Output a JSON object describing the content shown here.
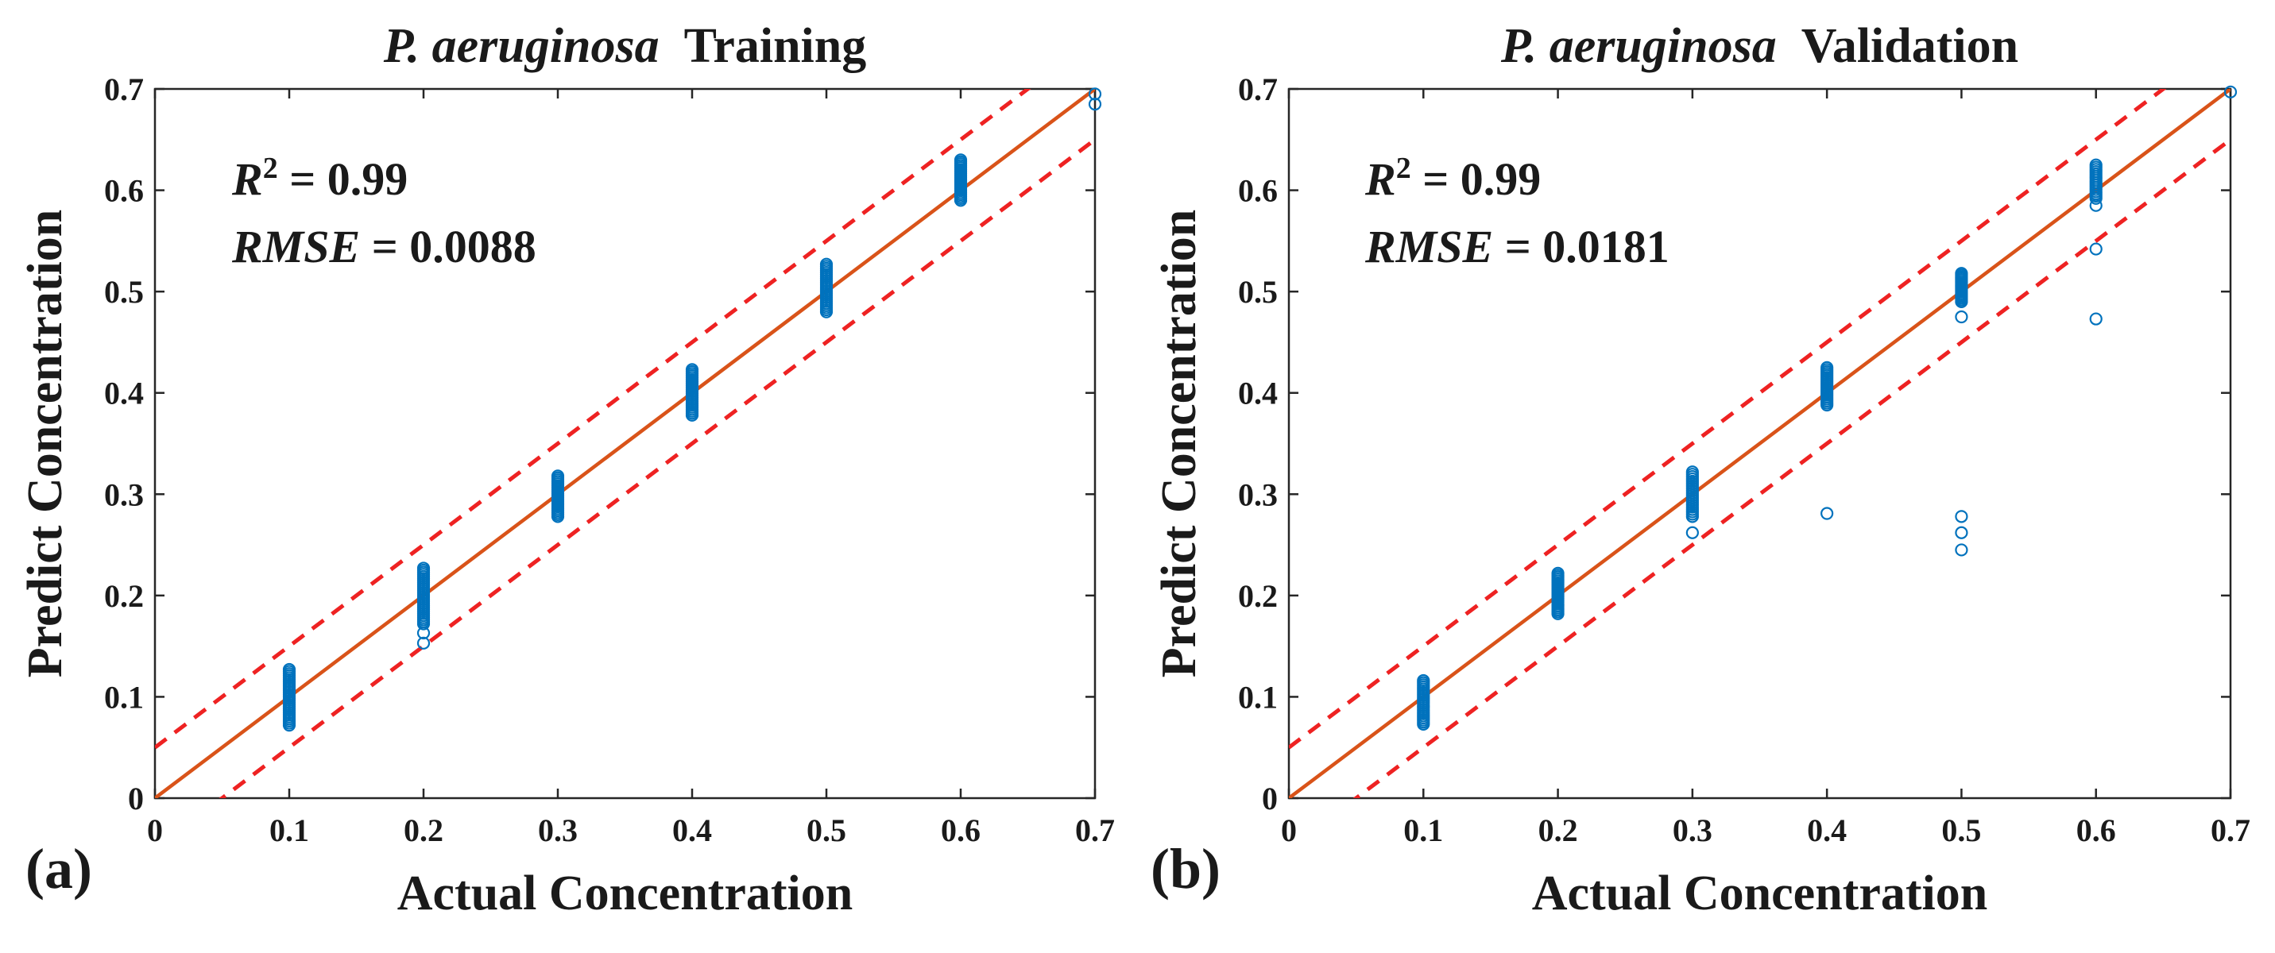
{
  "chart_data": [
    {
      "type": "scatter",
      "panel_label": "(a)",
      "title_italic": "P. aeruginosa",
      "title_rest": "Training",
      "xlabel": "Actual Concentration",
      "ylabel": "Predict Concentration",
      "xlim": [
        0,
        0.7
      ],
      "ylim": [
        0,
        0.7
      ],
      "xticks": [
        "0",
        "0.1",
        "0.2",
        "0.3",
        "0.4",
        "0.5",
        "0.6",
        "0.7"
      ],
      "yticks": [
        "0",
        "0.1",
        "0.2",
        "0.3",
        "0.4",
        "0.5",
        "0.6",
        "0.7"
      ],
      "r2_label": "R",
      "r2_sup": "2",
      "r2_value": " = 0.99",
      "rmse_label": "RMSE",
      "rmse_value": " = 0.0088",
      "fit_line": {
        "x": [
          0,
          0.7
        ],
        "y": [
          0,
          0.7
        ],
        "color": "#d95319"
      },
      "bounds": [
        {
          "x": [
            0,
            0.7
          ],
          "y": [
            0.05,
            0.75
          ],
          "color": "#ee2222"
        },
        {
          "x": [
            0,
            0.7
          ],
          "y": [
            -0.05,
            0.65
          ],
          "color": "#ee2222"
        }
      ],
      "point_color": "#0072bd",
      "groups": [
        {
          "x": 0.1,
          "min": 0.072,
          "max": 0.127,
          "n": 28
        },
        {
          "x": 0.2,
          "min": 0.172,
          "max": 0.227,
          "n": 28
        },
        {
          "x": 0.3,
          "min": 0.278,
          "max": 0.318,
          "n": 22
        },
        {
          "x": 0.4,
          "min": 0.378,
          "max": 0.423,
          "n": 24
        },
        {
          "x": 0.5,
          "min": 0.48,
          "max": 0.527,
          "n": 24
        },
        {
          "x": 0.6,
          "min": 0.59,
          "max": 0.63,
          "n": 22
        }
      ],
      "points": [
        [
          0.2,
          0.163
        ],
        [
          0.2,
          0.153
        ],
        [
          0.7,
          0.695
        ],
        [
          0.7,
          0.685
        ]
      ]
    },
    {
      "type": "scatter",
      "panel_label": "(b)",
      "title_italic": "P. aeruginosa",
      "title_rest": "Validation",
      "xlabel": "Actual Concentration",
      "ylabel": "Predict Concentration",
      "xlim": [
        0,
        0.7
      ],
      "ylim": [
        0,
        0.7
      ],
      "xticks": [
        "0",
        "0.1",
        "0.2",
        "0.3",
        "0.4",
        "0.5",
        "0.6",
        "0.7"
      ],
      "yticks": [
        "0",
        "0.1",
        "0.2",
        "0.3",
        "0.4",
        "0.5",
        "0.6",
        "0.7"
      ],
      "r2_label": "R",
      "r2_sup": "2",
      "r2_value": " = 0.99",
      "rmse_label": "RMSE",
      "rmse_value": " = 0.0181",
      "fit_line": {
        "x": [
          0,
          0.7
        ],
        "y": [
          0,
          0.7
        ],
        "color": "#d95319"
      },
      "bounds": [
        {
          "x": [
            0,
            0.7
          ],
          "y": [
            0.05,
            0.75
          ],
          "color": "#ee2222"
        },
        {
          "x": [
            0,
            0.7
          ],
          "y": [
            -0.05,
            0.65
          ],
          "color": "#ee2222"
        }
      ],
      "point_color": "#0072bd",
      "groups": [
        {
          "x": 0.1,
          "min": 0.073,
          "max": 0.116,
          "n": 22
        },
        {
          "x": 0.2,
          "min": 0.182,
          "max": 0.222,
          "n": 22
        },
        {
          "x": 0.3,
          "min": 0.278,
          "max": 0.322,
          "n": 20
        },
        {
          "x": 0.4,
          "min": 0.388,
          "max": 0.425,
          "n": 20
        },
        {
          "x": 0.5,
          "min": 0.49,
          "max": 0.518,
          "n": 18
        },
        {
          "x": 0.6,
          "min": 0.592,
          "max": 0.625,
          "n": 16
        }
      ],
      "points": [
        [
          0.3,
          0.262
        ],
        [
          0.4,
          0.281
        ],
        [
          0.5,
          0.475
        ],
        [
          0.5,
          0.278
        ],
        [
          0.5,
          0.262
        ],
        [
          0.5,
          0.245
        ],
        [
          0.6,
          0.585
        ],
        [
          0.6,
          0.542
        ],
        [
          0.6,
          0.473
        ],
        [
          0.7,
          0.697
        ]
      ]
    }
  ]
}
